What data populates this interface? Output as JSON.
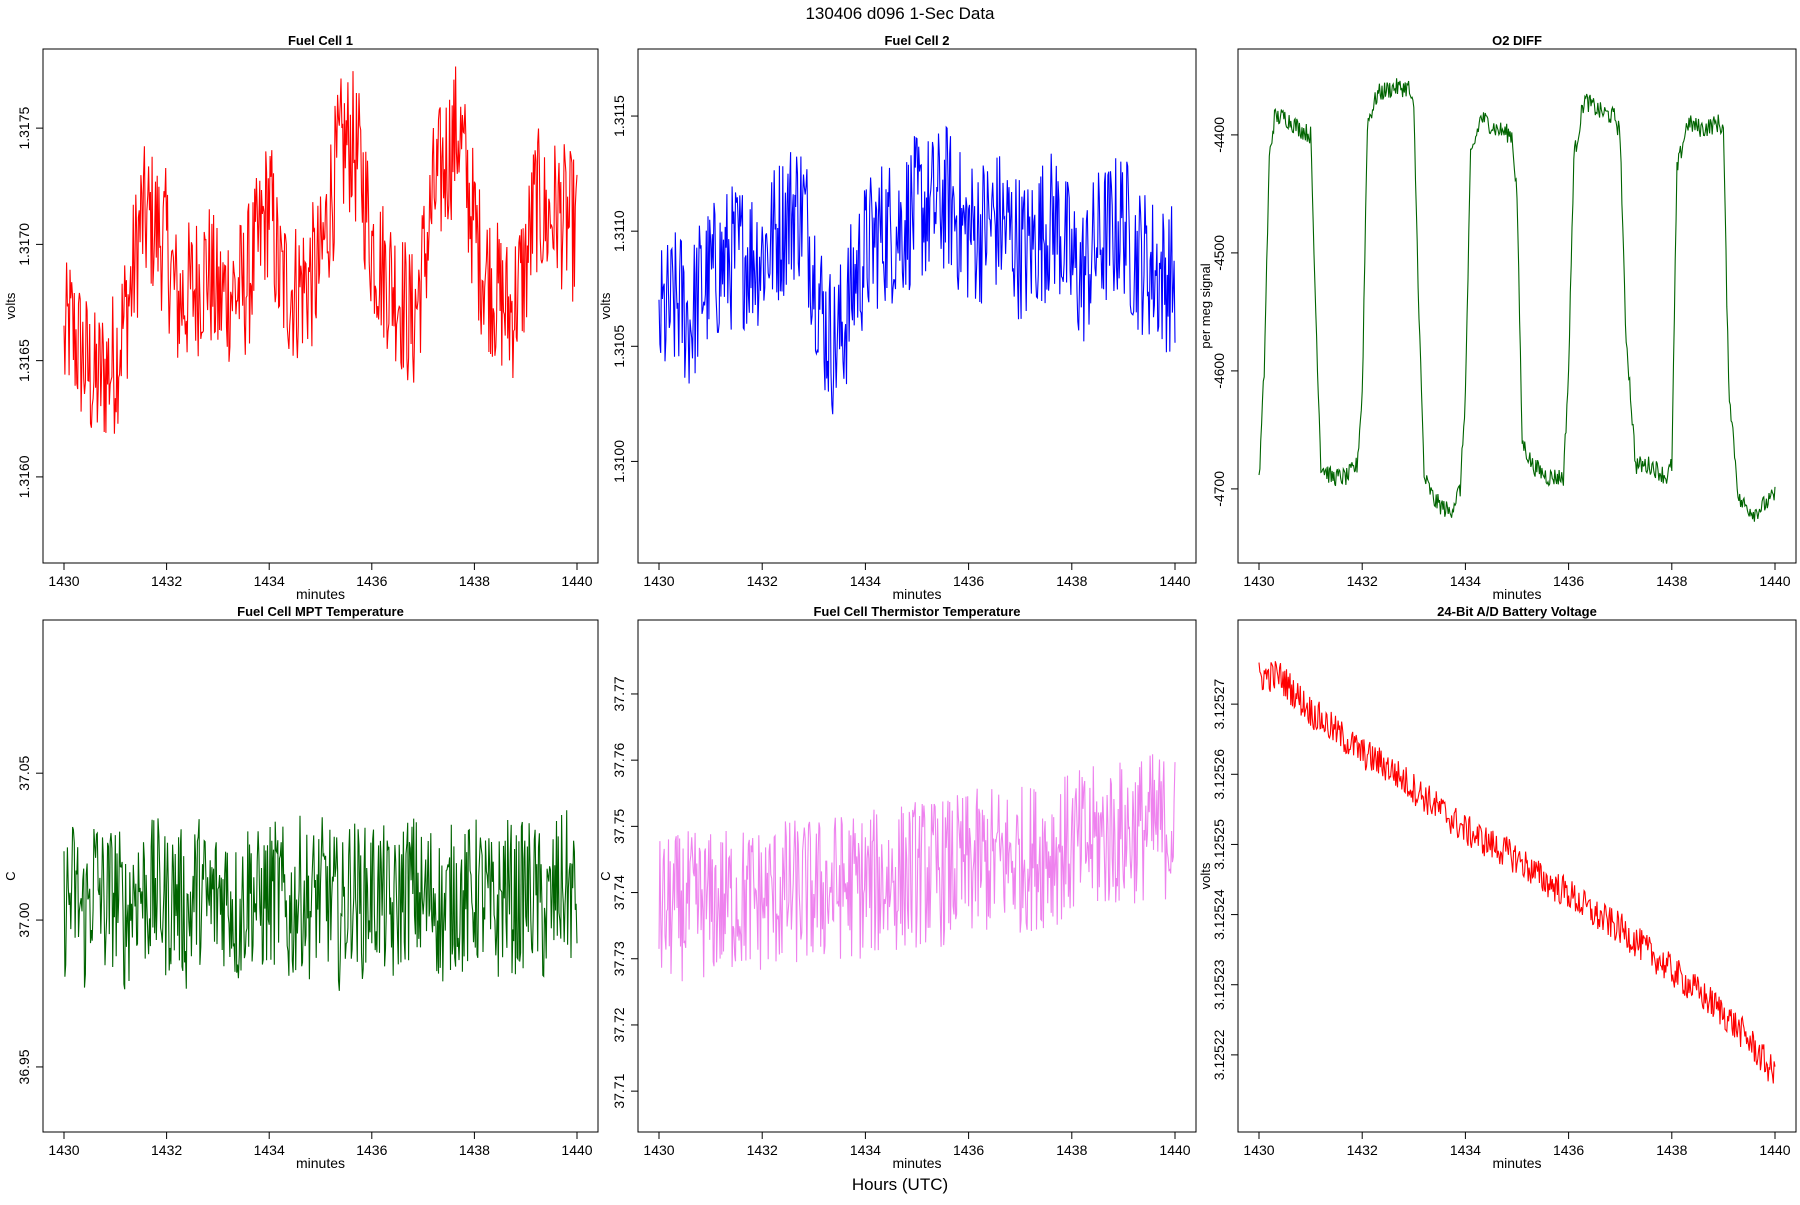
{
  "figure": {
    "title": "130406   d096   1-Sec Data",
    "xlabel": "Hours (UTC)"
  },
  "chart_data": [
    {
      "type": "line",
      "title": "Fuel Cell 1",
      "xlabel": "minutes",
      "ylabel": "volts",
      "color": "#ff0000",
      "xlim": [
        1430,
        1440
      ],
      "ylim": [
        1.31572,
        1.31775
      ],
      "xticks": [
        1430,
        1432,
        1434,
        1436,
        1438,
        1440
      ],
      "yticks": [
        1.316,
        1.3165,
        1.317,
        1.3175
      ],
      "ytick_labels": [
        "1.3160",
        "1.3165",
        "1.3170",
        "1.3175"
      ],
      "x": [
        1430.0,
        1430.1,
        1430.2,
        1430.4,
        1430.6,
        1430.8,
        1431.0,
        1431.1,
        1431.3,
        1431.5,
        1431.7,
        1432.0,
        1432.2,
        1432.5,
        1432.8,
        1433.0,
        1433.2,
        1433.5,
        1433.8,
        1434.0,
        1434.2,
        1434.5,
        1434.8,
        1435.0,
        1435.2,
        1435.4,
        1435.6,
        1435.8,
        1436.0,
        1436.2,
        1436.5,
        1436.8,
        1437.0,
        1437.2,
        1437.5,
        1437.7,
        1437.9,
        1438.1,
        1438.4,
        1438.7,
        1439.0,
        1439.2,
        1439.4,
        1439.6,
        1439.8,
        1440.0
      ],
      "values": [
        1.31655,
        1.31665,
        1.3166,
        1.3165,
        1.3164,
        1.31645,
        1.3165,
        1.3166,
        1.3168,
        1.3171,
        1.3171,
        1.317,
        1.31675,
        1.3168,
        1.3169,
        1.31675,
        1.3168,
        1.3168,
        1.317,
        1.3172,
        1.31685,
        1.3168,
        1.31685,
        1.3169,
        1.3172,
        1.3174,
        1.31745,
        1.3173,
        1.317,
        1.3169,
        1.3168,
        1.31665,
        1.3169,
        1.3172,
        1.3174,
        1.3175,
        1.3172,
        1.31695,
        1.3168,
        1.3167,
        1.3169,
        1.3172,
        1.3171,
        1.31715,
        1.3171,
        1.31705
      ]
    },
    {
      "type": "line",
      "title": "Fuel Cell 2",
      "xlabel": "minutes",
      "ylabel": "volts",
      "color": "#0000ff",
      "xlim": [
        1430,
        1440
      ],
      "ylim": [
        1.30965,
        1.3117
      ],
      "xticks": [
        1430,
        1432,
        1434,
        1436,
        1438,
        1440
      ],
      "yticks": [
        1.31,
        1.3105,
        1.311,
        1.3115
      ],
      "ytick_labels": [
        "1.3100",
        "1.3105",
        "1.3110",
        "1.3115"
      ],
      "x": [
        1430.0,
        1430.2,
        1430.4,
        1430.6,
        1430.8,
        1431.0,
        1431.2,
        1431.5,
        1431.8,
        1432.0,
        1432.3,
        1432.6,
        1432.8,
        1433.0,
        1433.2,
        1433.4,
        1433.6,
        1433.8,
        1434.0,
        1434.3,
        1434.6,
        1435.0,
        1435.3,
        1435.6,
        1435.9,
        1436.2,
        1436.5,
        1436.8,
        1437.1,
        1437.4,
        1437.7,
        1438.0,
        1438.2,
        1438.5,
        1438.8,
        1439.0,
        1439.2,
        1439.5,
        1439.8,
        1440.0
      ],
      "values": [
        1.3106,
        1.31065,
        1.3107,
        1.3106,
        1.31075,
        1.3108,
        1.31085,
        1.3109,
        1.3109,
        1.3109,
        1.311,
        1.3111,
        1.3111,
        1.31085,
        1.3106,
        1.3105,
        1.3106,
        1.3108,
        1.3109,
        1.311,
        1.311,
        1.3111,
        1.3111,
        1.31115,
        1.311,
        1.311,
        1.31105,
        1.311,
        1.3109,
        1.311,
        1.31105,
        1.31085,
        1.3108,
        1.31095,
        1.311,
        1.31105,
        1.3109,
        1.31085,
        1.3108,
        1.3108
      ]
    },
    {
      "type": "line",
      "title": "O2 DIFF",
      "xlabel": "minutes",
      "ylabel": "per meg signal",
      "color": "#006400",
      "xlim": [
        1430,
        1440
      ],
      "ylim": [
        -4745,
        -4345
      ],
      "xticks": [
        1430,
        1432,
        1434,
        1436,
        1438,
        1440
      ],
      "yticks": [
        -4700,
        -4600,
        -4500,
        -4400
      ],
      "ytick_labels": [
        "-4700",
        "-4600",
        "-4500",
        "-4400"
      ],
      "x": [
        1430.0,
        1430.1,
        1430.2,
        1430.3,
        1430.5,
        1430.8,
        1431.0,
        1431.1,
        1431.2,
        1431.4,
        1431.7,
        1431.9,
        1432.0,
        1432.1,
        1432.3,
        1432.6,
        1432.9,
        1433.0,
        1433.1,
        1433.2,
        1433.4,
        1433.7,
        1433.9,
        1434.0,
        1434.1,
        1434.3,
        1434.6,
        1434.9,
        1435.0,
        1435.1,
        1435.3,
        1435.6,
        1435.9,
        1436.0,
        1436.1,
        1436.3,
        1436.6,
        1436.9,
        1437.0,
        1437.1,
        1437.3,
        1437.6,
        1437.9,
        1438.0,
        1438.1,
        1438.3,
        1438.6,
        1438.9,
        1439.0,
        1439.1,
        1439.3,
        1439.6,
        1439.9,
        1440.0
      ],
      "values": [
        -4695,
        -4600,
        -4420,
        -4385,
        -4385,
        -4395,
        -4400,
        -4550,
        -4680,
        -4690,
        -4690,
        -4680,
        -4620,
        -4390,
        -4365,
        -4360,
        -4360,
        -4380,
        -4550,
        -4690,
        -4710,
        -4720,
        -4700,
        -4620,
        -4420,
        -4385,
        -4395,
        -4400,
        -4450,
        -4660,
        -4680,
        -4690,
        -4690,
        -4600,
        -4420,
        -4370,
        -4380,
        -4385,
        -4400,
        -4560,
        -4680,
        -4680,
        -4690,
        -4680,
        -4430,
        -4390,
        -4395,
        -4390,
        -4395,
        -4610,
        -4710,
        -4720,
        -4710,
        -4705
      ]
    },
    {
      "type": "line",
      "title": "Fuel Cell MPT Temperature",
      "xlabel": "minutes",
      "ylabel": "C",
      "color": "#006400",
      "xlim": [
        1430,
        1440
      ],
      "ylim": [
        36.935,
        37.095
      ],
      "xticks": [
        1430,
        1432,
        1434,
        1436,
        1438,
        1440
      ],
      "yticks": [
        36.95,
        37.0,
        37.05
      ],
      "ytick_labels": [
        "36.95",
        "37.00",
        "37.05"
      ],
      "x": [
        1430.0,
        1430.2,
        1430.4,
        1430.6,
        1430.8,
        1431.0,
        1431.2,
        1431.4,
        1431.6,
        1431.8,
        1432.0,
        1432.2,
        1432.4,
        1432.6,
        1432.8,
        1433.0,
        1433.2,
        1433.4,
        1433.6,
        1433.8,
        1434.0,
        1434.2,
        1434.4,
        1434.6,
        1434.8,
        1435.0,
        1435.2,
        1435.4,
        1435.6,
        1435.8,
        1436.0,
        1436.2,
        1436.4,
        1436.6,
        1436.8,
        1437.0,
        1437.2,
        1437.4,
        1437.6,
        1437.8,
        1438.0,
        1438.2,
        1438.4,
        1438.6,
        1438.8,
        1439.0,
        1439.2,
        1439.4,
        1439.6,
        1439.8,
        1440.0
      ],
      "values": [
        37.005,
        37.01,
        37.0,
        37.015,
        37.005,
        37.01,
        37.0,
        37.012,
        37.008,
        37.01,
        37.005,
        37.01,
        37.0,
        37.012,
        37.005,
        37.008,
        37.01,
        37.0,
        37.012,
        37.005,
        37.008,
        37.01,
        37.0,
        37.01,
        37.005,
        37.01,
        37.008,
        37.0,
        37.012,
        37.005,
        37.01,
        37.008,
        37.0,
        37.01,
        37.012,
        37.005,
        37.01,
        37.0,
        37.01,
        37.005,
        37.01,
        37.008,
        37.0,
        37.012,
        37.005,
        37.01,
        37.008,
        37.0,
        37.01,
        37.012,
        37.005
      ]
    },
    {
      "type": "line",
      "title": "Fuel Cell Thermistor Temperature",
      "xlabel": "minutes",
      "ylabel": "C",
      "color": "#ee82ee",
      "xlim": [
        1430,
        1440
      ],
      "ylim": [
        37.707,
        37.778
      ],
      "xticks": [
        1430,
        1432,
        1434,
        1436,
        1438,
        1440
      ],
      "yticks": [
        37.71,
        37.72,
        37.73,
        37.74,
        37.75,
        37.76,
        37.77
      ],
      "ytick_labels": [
        "37.71",
        "37.72",
        "37.73",
        "37.74",
        "37.75",
        "37.76",
        "37.77"
      ],
      "x": [
        1430.0,
        1430.5,
        1431.0,
        1431.5,
        1432.0,
        1432.5,
        1433.0,
        1433.5,
        1434.0,
        1434.5,
        1435.0,
        1435.5,
        1436.0,
        1436.5,
        1437.0,
        1437.5,
        1438.0,
        1438.5,
        1439.0,
        1439.5,
        1440.0
      ],
      "values": [
        37.737,
        37.738,
        37.738,
        37.739,
        37.739,
        37.74,
        37.74,
        37.741,
        37.741,
        37.742,
        37.743,
        37.743,
        37.744,
        37.745,
        37.745,
        37.746,
        37.747,
        37.748,
        37.749,
        37.75,
        37.75
      ]
    },
    {
      "type": "line",
      "title": "24-Bit A/D Battery Voltage",
      "xlabel": "minutes",
      "ylabel": "volts",
      "color": "#ff0000",
      "xlim": [
        1430,
        1440
      ],
      "ylim": [
        3.125212,
        3.125279
      ],
      "xticks": [
        1430,
        1432,
        1434,
        1436,
        1438,
        1440
      ],
      "yticks": [
        3.12522,
        3.12523,
        3.12524,
        3.12525,
        3.12526,
        3.12527
      ],
      "ytick_labels": [
        "3.12522",
        "3.12523",
        "3.12524",
        "3.12525",
        "3.12526",
        "3.12527"
      ],
      "x": [
        1430.0,
        1430.4,
        1431.0,
        1431.5,
        1432.0,
        1432.5,
        1433.0,
        1433.5,
        1434.0,
        1434.5,
        1435.0,
        1435.5,
        1436.0,
        1436.5,
        1437.0,
        1437.5,
        1438.0,
        1438.5,
        1439.0,
        1439.5,
        1440.0
      ],
      "values": [
        3.125274,
        3.125274,
        3.125269,
        3.125266,
        3.125263,
        3.125261,
        3.125258,
        3.125255,
        3.125252,
        3.12525,
        3.125248,
        3.125245,
        3.125243,
        3.12524,
        3.125238,
        3.125235,
        3.125232,
        3.125229,
        3.125226,
        3.125222,
        3.125217
      ]
    }
  ]
}
